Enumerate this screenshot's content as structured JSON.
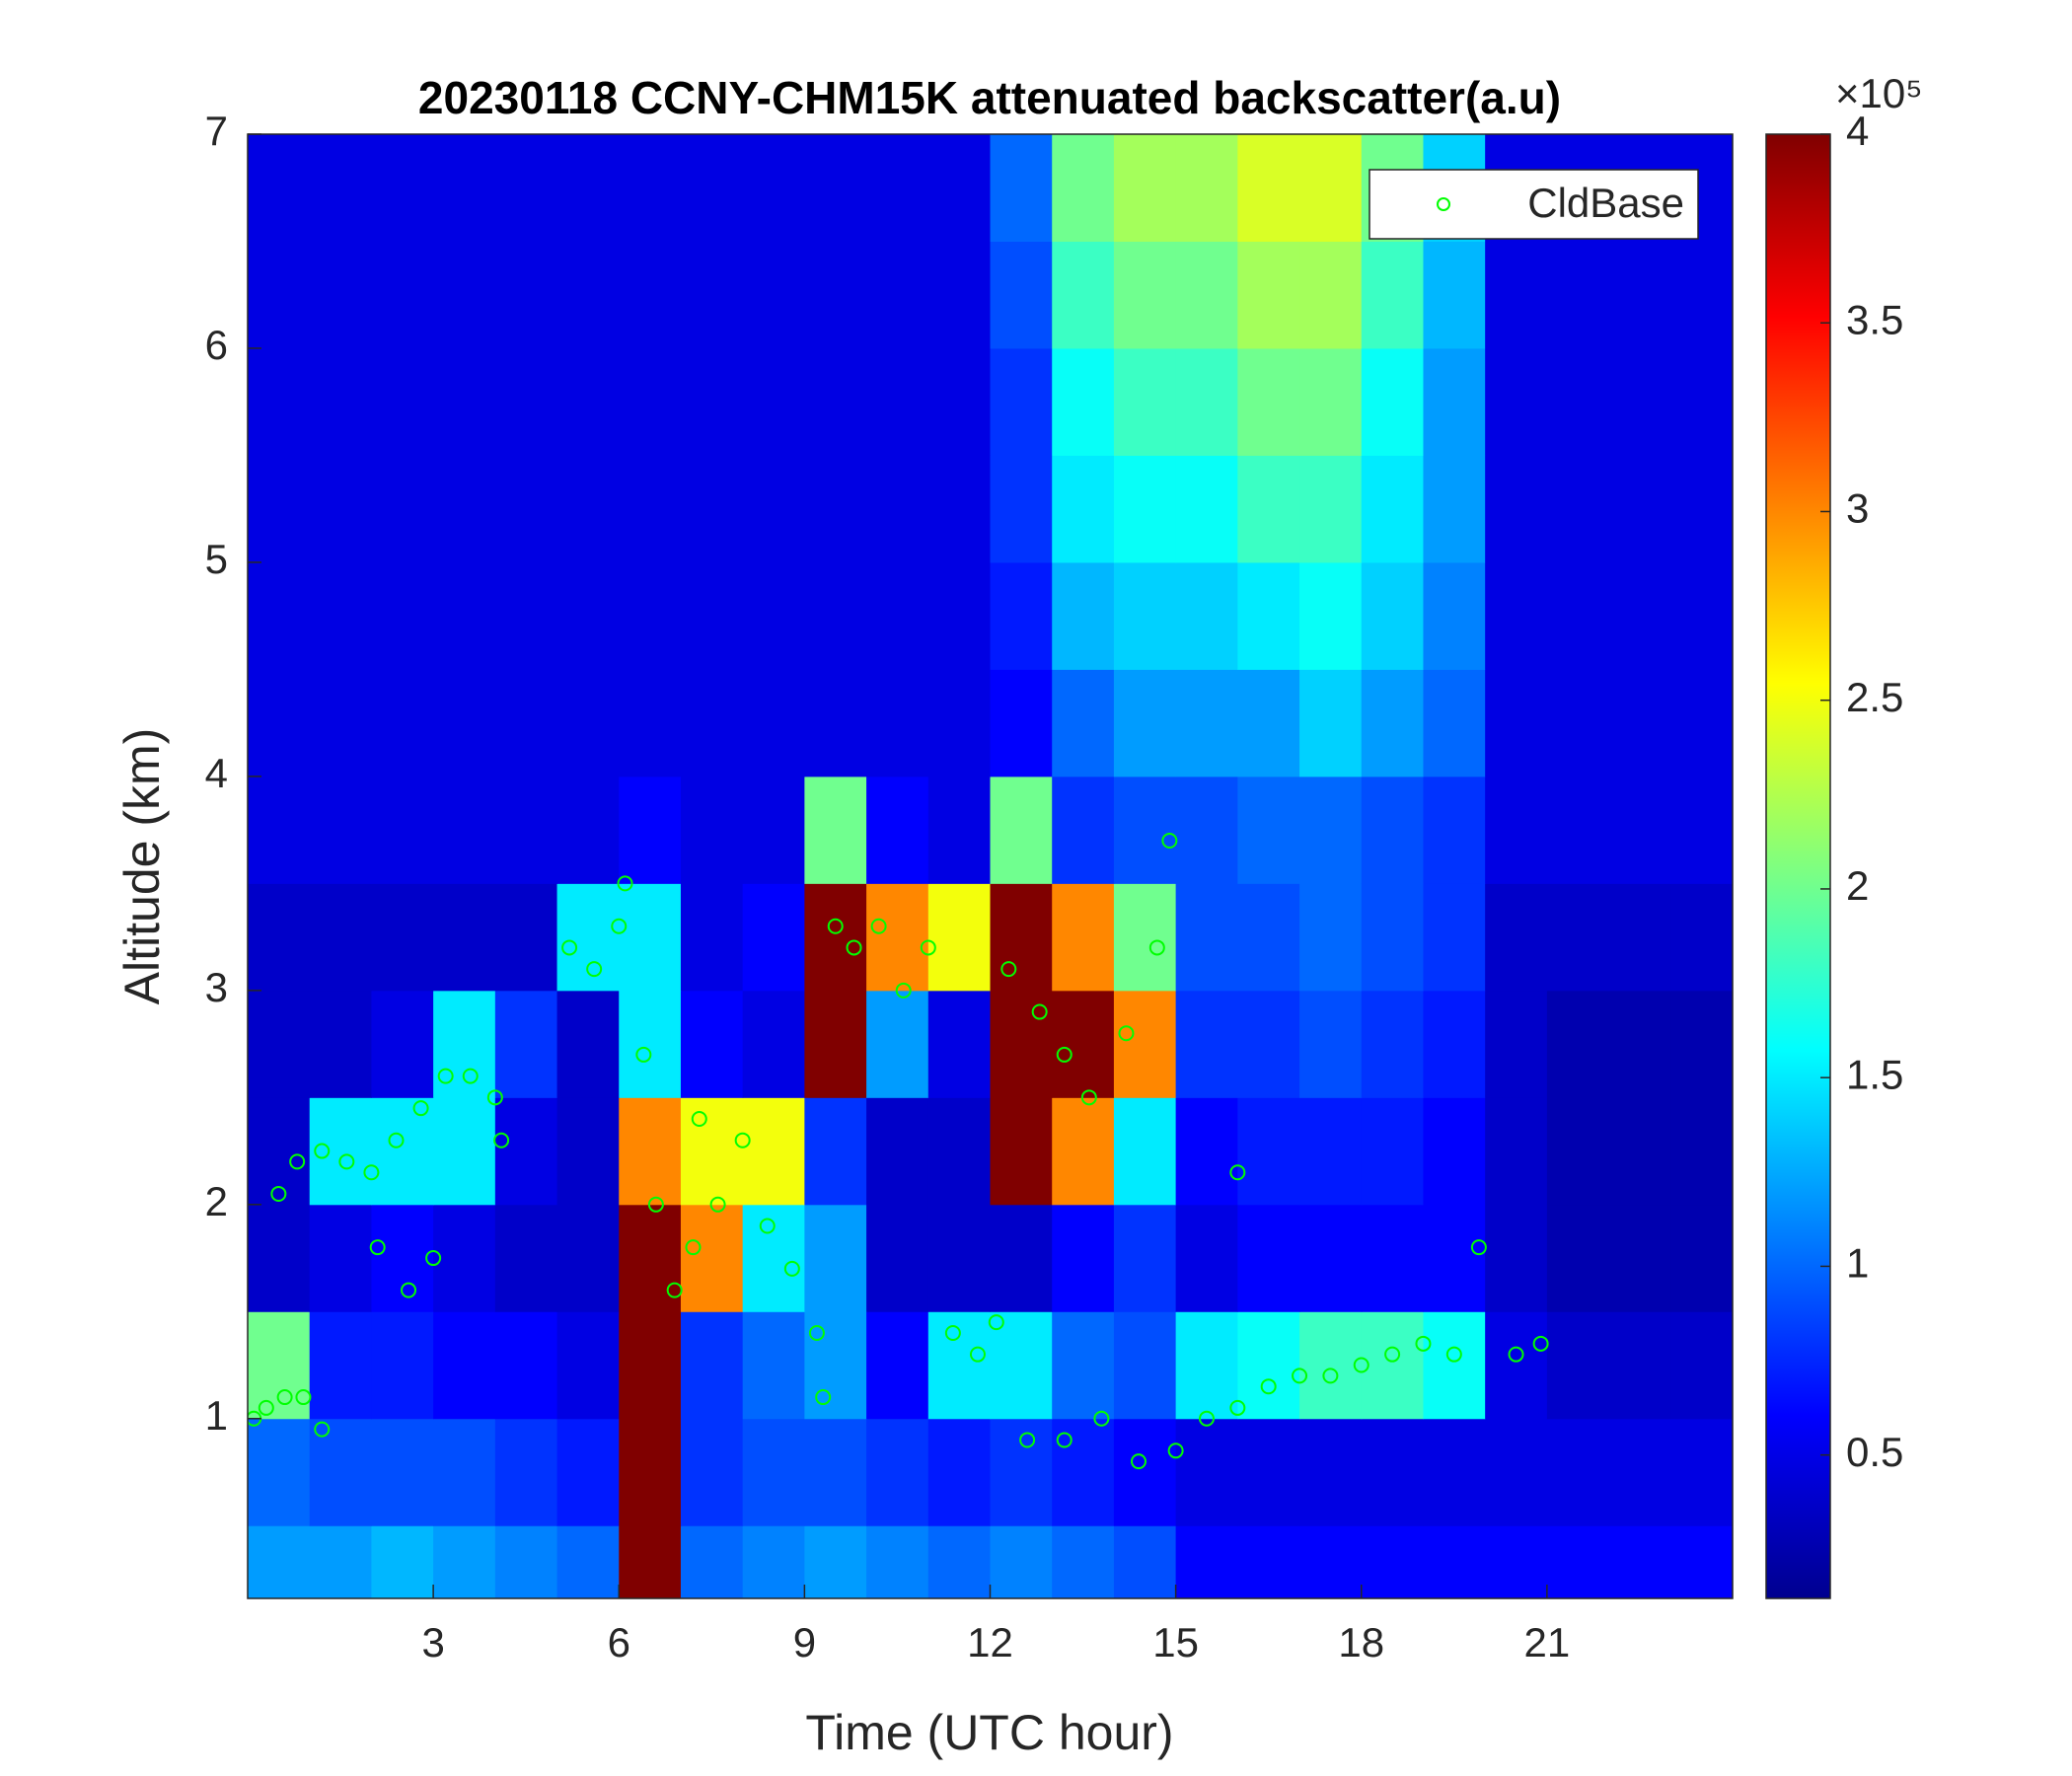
{
  "chart_data": {
    "type": "heatmap",
    "title": "20230118 CCNY-CHM15K attenuated backscatter(a.u)",
    "x_label": "Time (UTC hour)",
    "y_label": "Altitude (km)",
    "xlim": [
      0,
      24
    ],
    "xticks": [
      3,
      6,
      9,
      12,
      15,
      18,
      21
    ],
    "ylim": [
      0.16,
      7
    ],
    "yticks": [
      1,
      2,
      3,
      4,
      5,
      6,
      7
    ],
    "xbins": [
      0,
      1,
      2,
      3,
      4,
      5,
      6,
      7,
      8,
      9,
      10,
      11,
      12,
      13,
      14,
      15,
      16,
      17,
      18,
      19,
      20,
      21,
      22,
      23,
      24
    ],
    "ybins": [
      0.16,
      0.5,
      1,
      1.5,
      2,
      2.5,
      3,
      3.5,
      4,
      4.5,
      5,
      5.5,
      6,
      6.5,
      7
    ],
    "z": [
      [
        1.2,
        1.2,
        1.3,
        1.2,
        1.1,
        1.0,
        4,
        1.0,
        1.1,
        1.2,
        1.1,
        1.0,
        1.1,
        1.0,
        0.9,
        0.6,
        0.6,
        0.6,
        0.6,
        0.6,
        0.6,
        0.6,
        0.6,
        0.6
      ],
      [
        1.0,
        0.9,
        0.9,
        0.9,
        0.8,
        0.7,
        4,
        0.8,
        0.9,
        0.9,
        0.8,
        0.7,
        0.8,
        0.7,
        0.6,
        0.5,
        0.5,
        0.5,
        0.5,
        0.5,
        0.5,
        0.5,
        0.5,
        0.5
      ],
      [
        2,
        0.7,
        0.7,
        0.6,
        0.6,
        0.5,
        4,
        0.8,
        1.0,
        1.2,
        0.6,
        1.5,
        1.5,
        1.0,
        0.9,
        1.5,
        1.6,
        1.8,
        1.8,
        1.6,
        0.5,
        0.4,
        0.4,
        0.4
      ],
      [
        0.4,
        0.5,
        0.6,
        0.5,
        0.4,
        0.4,
        4,
        3,
        1.5,
        1.2,
        0.4,
        0.4,
        0.4,
        0.6,
        0.8,
        0.5,
        0.6,
        0.6,
        0.6,
        0.6,
        0.4,
        0.3,
        0.3,
        0.3
      ],
      [
        0.4,
        1.5,
        1.5,
        1.5,
        0.5,
        0.4,
        3,
        2.5,
        2.5,
        0.8,
        0.4,
        0.4,
        4,
        3,
        1.5,
        0.6,
        0.7,
        0.7,
        0.7,
        0.6,
        0.4,
        0.3,
        0.3,
        0.3
      ],
      [
        0.4,
        0.4,
        0.5,
        1.5,
        0.8,
        0.4,
        1.5,
        0.6,
        0.5,
        4,
        1.2,
        0.5,
        4,
        4,
        3,
        0.8,
        0.8,
        0.9,
        0.8,
        0.7,
        0.4,
        0.3,
        0.3,
        0.3
      ],
      [
        0.4,
        0.4,
        0.4,
        0.4,
        0.4,
        1.5,
        1.5,
        0.5,
        0.6,
        4,
        3,
        2.5,
        4,
        3,
        2,
        0.9,
        0.9,
        1.0,
        0.9,
        0.8,
        0.4,
        0.4,
        0.4,
        0.4
      ],
      [
        0.5,
        0.5,
        0.5,
        0.5,
        0.5,
        0.5,
        0.6,
        0.5,
        0.5,
        2,
        0.6,
        0.5,
        2,
        0.8,
        0.9,
        0.9,
        1.0,
        1.0,
        0.9,
        0.8,
        0.5,
        0.5,
        0.5,
        0.5
      ],
      [
        0.5,
        0.5,
        0.5,
        0.5,
        0.5,
        0.5,
        0.5,
        0.5,
        0.5,
        0.5,
        0.5,
        0.5,
        0.6,
        1.0,
        1.2,
        1.2,
        1.2,
        1.4,
        1.2,
        1.0,
        0.5,
        0.5,
        0.5,
        0.5
      ],
      [
        0.5,
        0.5,
        0.5,
        0.5,
        0.5,
        0.5,
        0.5,
        0.5,
        0.5,
        0.5,
        0.5,
        0.5,
        0.7,
        1.3,
        1.4,
        1.4,
        1.5,
        1.6,
        1.4,
        1.1,
        0.5,
        0.5,
        0.5,
        0.5
      ],
      [
        0.5,
        0.5,
        0.5,
        0.5,
        0.5,
        0.5,
        0.5,
        0.5,
        0.5,
        0.5,
        0.5,
        0.5,
        0.8,
        1.5,
        1.6,
        1.6,
        1.8,
        1.8,
        1.5,
        1.2,
        0.5,
        0.5,
        0.5,
        0.5
      ],
      [
        0.5,
        0.5,
        0.5,
        0.5,
        0.5,
        0.5,
        0.5,
        0.5,
        0.5,
        0.5,
        0.5,
        0.5,
        0.8,
        1.6,
        1.8,
        1.8,
        2,
        2,
        1.6,
        1.2,
        0.5,
        0.5,
        0.5,
        0.5
      ],
      [
        0.5,
        0.5,
        0.5,
        0.5,
        0.5,
        0.5,
        0.5,
        0.5,
        0.5,
        0.5,
        0.5,
        0.5,
        0.9,
        1.8,
        2,
        2,
        2.2,
        2.2,
        1.8,
        1.3,
        0.5,
        0.5,
        0.5,
        0.5
      ],
      [
        0.5,
        0.5,
        0.5,
        0.5,
        0.5,
        0.5,
        0.5,
        0.5,
        0.5,
        0.5,
        0.5,
        0.5,
        1.0,
        2,
        2.2,
        2.2,
        2.4,
        2.4,
        2,
        1.4,
        0.5,
        0.5,
        0.5,
        0.5
      ]
    ],
    "clim": [
      0.12,
      4
    ],
    "cticks": [
      0.5,
      1,
      1.5,
      2,
      2.5,
      3,
      3.5,
      4
    ],
    "colorbar_exponent": "×10⁵",
    "colormap": "jet",
    "series": [
      {
        "name": "CldBase",
        "color": "#00ff00",
        "x": [
          0.1,
          0.3,
          0.6,
          0.9,
          1.2,
          0.5,
          0.8,
          1.2,
          1.6,
          2.0,
          2.4,
          2.8,
          3.2,
          3.6,
          4.0,
          4.1,
          2.1,
          2.6,
          3.0,
          5.2,
          5.6,
          6.0,
          6.1,
          6.4,
          6.6,
          6.9,
          7.2,
          7.3,
          7.6,
          8.0,
          8.4,
          8.8,
          9.2,
          9.3,
          9.5,
          9.8,
          10.2,
          10.6,
          11.0,
          11.4,
          11.8,
          12.1,
          12.3,
          12.6,
          12.8,
          13.2,
          13.2,
          13.6,
          13.8,
          14.2,
          14.4,
          14.7,
          14.9,
          15.0,
          15.5,
          16.0,
          16.0,
          16.5,
          17.0,
          17.5,
          18.0,
          18.5,
          19.0,
          19.5,
          19.9,
          20.5,
          20.9
        ],
        "values": [
          1.0,
          1.05,
          1.1,
          1.1,
          0.95,
          2.05,
          2.2,
          2.25,
          2.2,
          2.15,
          2.3,
          2.45,
          2.6,
          2.6,
          2.5,
          2.3,
          1.8,
          1.6,
          1.75,
          3.2,
          3.1,
          3.3,
          3.5,
          2.7,
          2.0,
          1.6,
          1.8,
          2.4,
          2.0,
          2.3,
          1.9,
          1.7,
          1.4,
          1.1,
          3.3,
          3.2,
          3.3,
          3.0,
          3.2,
          1.4,
          1.3,
          1.45,
          3.1,
          0.9,
          2.9,
          2.7,
          0.9,
          2.5,
          1.0,
          2.8,
          0.8,
          3.2,
          3.7,
          0.85,
          1.0,
          1.05,
          2.15,
          1.15,
          1.2,
          1.2,
          1.25,
          1.3,
          1.35,
          1.3,
          1.8,
          1.3,
          1.35
        ]
      }
    ],
    "legend": "upper right"
  }
}
